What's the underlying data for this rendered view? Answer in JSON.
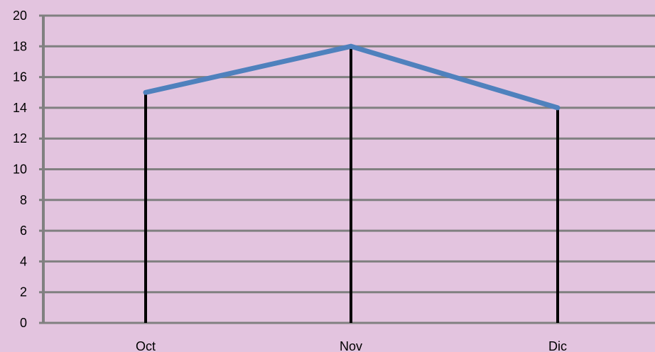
{
  "chart_data": {
    "type": "line",
    "categories": [
      "Oct",
      "Nov",
      "Dic"
    ],
    "series": [
      {
        "values": [
          15,
          18,
          14
        ]
      }
    ],
    "y_ticks": [
      "0",
      "2",
      "4",
      "6",
      "8",
      "10",
      "12",
      "14",
      "16",
      "18",
      "20"
    ],
    "ylim": [
      0,
      20
    ],
    "grid": true,
    "drop_lines": true
  },
  "colors": {
    "background": "#e3c4df",
    "gridline": "#808080",
    "series_line": "#4f81bd",
    "drop_line": "#000000",
    "axis": "#808080"
  }
}
